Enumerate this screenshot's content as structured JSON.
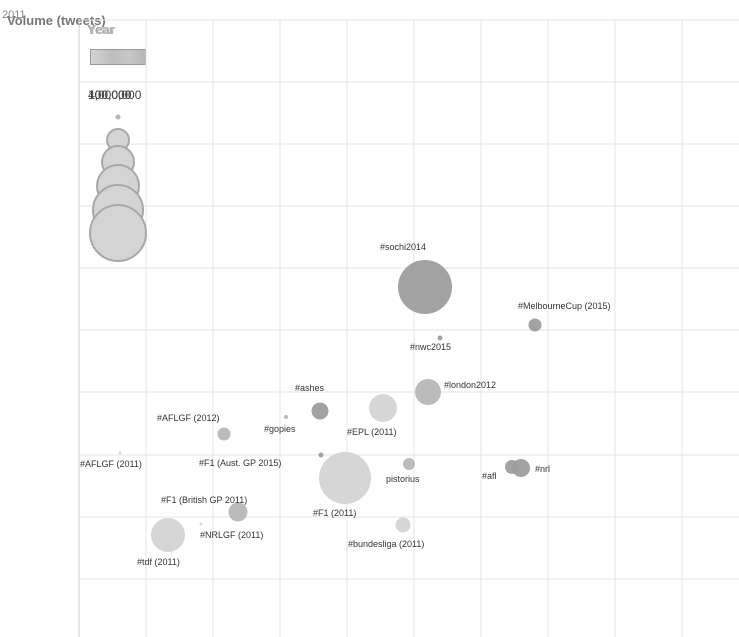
{
  "header": {
    "year_small": "2011",
    "volume_title": "Volume (tweets)",
    "year_title": "Year",
    "year_title_ghost": "Year",
    "volume_values": [
      "400,000",
      "100,000",
      "1,000,000"
    ]
  },
  "colors": {
    "light": "#d4d4d4",
    "mid": "#b7b7b7",
    "dark": "#9d9d9d",
    "grid": "#e6e6e6",
    "axis": "#cccccc",
    "label": "#333333"
  },
  "chart_data": {
    "type": "scatter",
    "grid": true,
    "series": [
      {
        "label": "#sochi2014",
        "color_key": "dark"
      },
      {
        "label": "#MelbourneCup (2015)",
        "color_key": "dark"
      },
      {
        "label": "#nwc2015",
        "color_key": "dark"
      },
      {
        "label": "#london2012",
        "color_key": "mid"
      },
      {
        "label": "#ashes",
        "color_key": "dark"
      },
      {
        "label": "#EPL (2011)",
        "color_key": "light"
      },
      {
        "label": "#AFLGF (2012)",
        "color_key": "mid"
      },
      {
        "label": "#gopies",
        "color_key": "mid"
      },
      {
        "label": "#AFLGF (2011)",
        "color_key": "light"
      },
      {
        "label": "#F1 (Aust. GP 2015)",
        "color_key": "dark"
      },
      {
        "label": "#F1 (2011)",
        "color_key": "light"
      },
      {
        "label": "pistorius",
        "color_key": "mid"
      },
      {
        "label": "#afl",
        "color_key": "dark"
      },
      {
        "label": "#nrl",
        "color_key": "dark"
      },
      {
        "label": "#F1 (British GP 2011)",
        "color_key": "mid"
      },
      {
        "label": "#NRLGF (2011)",
        "color_key": "light"
      },
      {
        "label": "#bundesliga (2011)",
        "color_key": "light"
      },
      {
        "label": "#tdf (2011)",
        "color_key": "light"
      }
    ]
  }
}
